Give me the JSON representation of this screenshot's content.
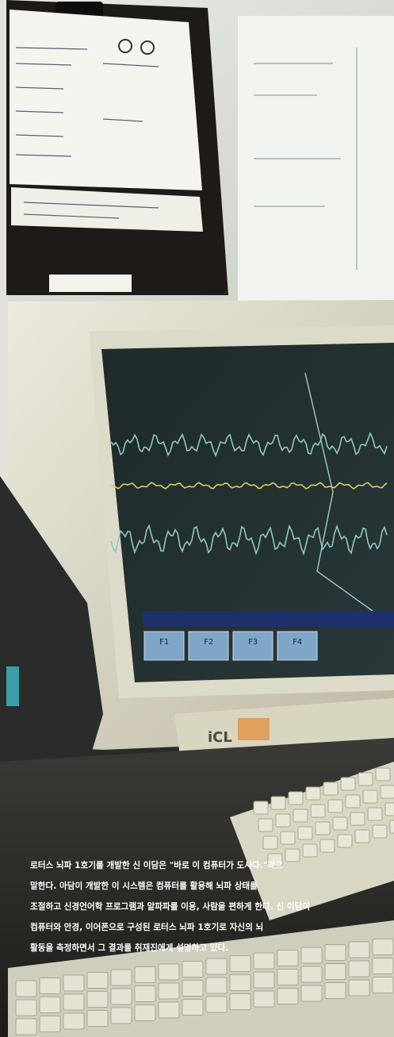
{
  "photo": {
    "screen_keys": [
      "F1",
      "F2",
      "F3",
      "F4"
    ],
    "monitor_brand": "iCL"
  },
  "caption": {
    "lines": [
      "로터스 뇌파 1호기를 개발한 신 이담은 \"바로 이 컴퓨터가 도사다.\"라고",
      "말한다. 아담이 개발한 이 시스템은 컴퓨터를 활용해 뇌파 상태를",
      "조절하고 신경언어학 프로그램과 알파파를 이용, 사람을 편하게 한다. 신 이담이",
      "컴퓨터와 안경, 이어폰으로 구성된 로터스 뇌파 1호기로 자신의 뇌",
      "활동을 측정하면서 그 결과를 취재진에게 설명하고 있다."
    ]
  }
}
